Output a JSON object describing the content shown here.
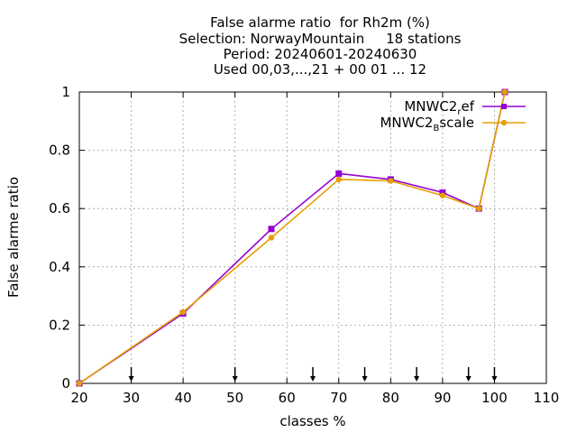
{
  "chart_data": {
    "type": "line",
    "title_lines": [
      "False alarme ratio  for Rh2m (%)",
      "Selection: NorwayMountain     18 stations",
      "Period: 20240601-20240630",
      "Used 00,03,...,21 + 00 01 ... 12"
    ],
    "xlabel": "classes %",
    "ylabel": "False alarme ratio",
    "xlim": [
      20,
      110
    ],
    "ylim": [
      0,
      1
    ],
    "x_ticks": [
      "20",
      "30",
      "40",
      "50",
      "60",
      "70",
      "80",
      "90",
      "100",
      "110"
    ],
    "y_ticks": [
      "0",
      "0.2",
      "0.4",
      "0.6",
      "0.8",
      "1"
    ],
    "grid": true,
    "legend_position": "top-right",
    "series": [
      {
        "name_main": "MNWC2",
        "name_sub": "r",
        "name_rest": "ef",
        "color": "#9400d3",
        "marker": "square",
        "x": [
          20,
          40,
          57,
          70,
          80,
          90,
          97,
          102
        ],
        "y": [
          0.0,
          0.24,
          0.53,
          0.72,
          0.7,
          0.655,
          0.6,
          1.0
        ]
      },
      {
        "name_main": "MNWC2",
        "name_sub": "B",
        "name_rest": "scale",
        "color": "#e69f00",
        "marker": "circle",
        "x": [
          20,
          40,
          57,
          70,
          80,
          90,
          97,
          102
        ],
        "y": [
          0.0,
          0.245,
          0.5,
          0.7,
          0.695,
          0.645,
          0.6,
          1.0
        ]
      }
    ],
    "threshold_arrows": [
      30,
      50,
      65,
      75,
      85,
      95,
      100
    ]
  }
}
